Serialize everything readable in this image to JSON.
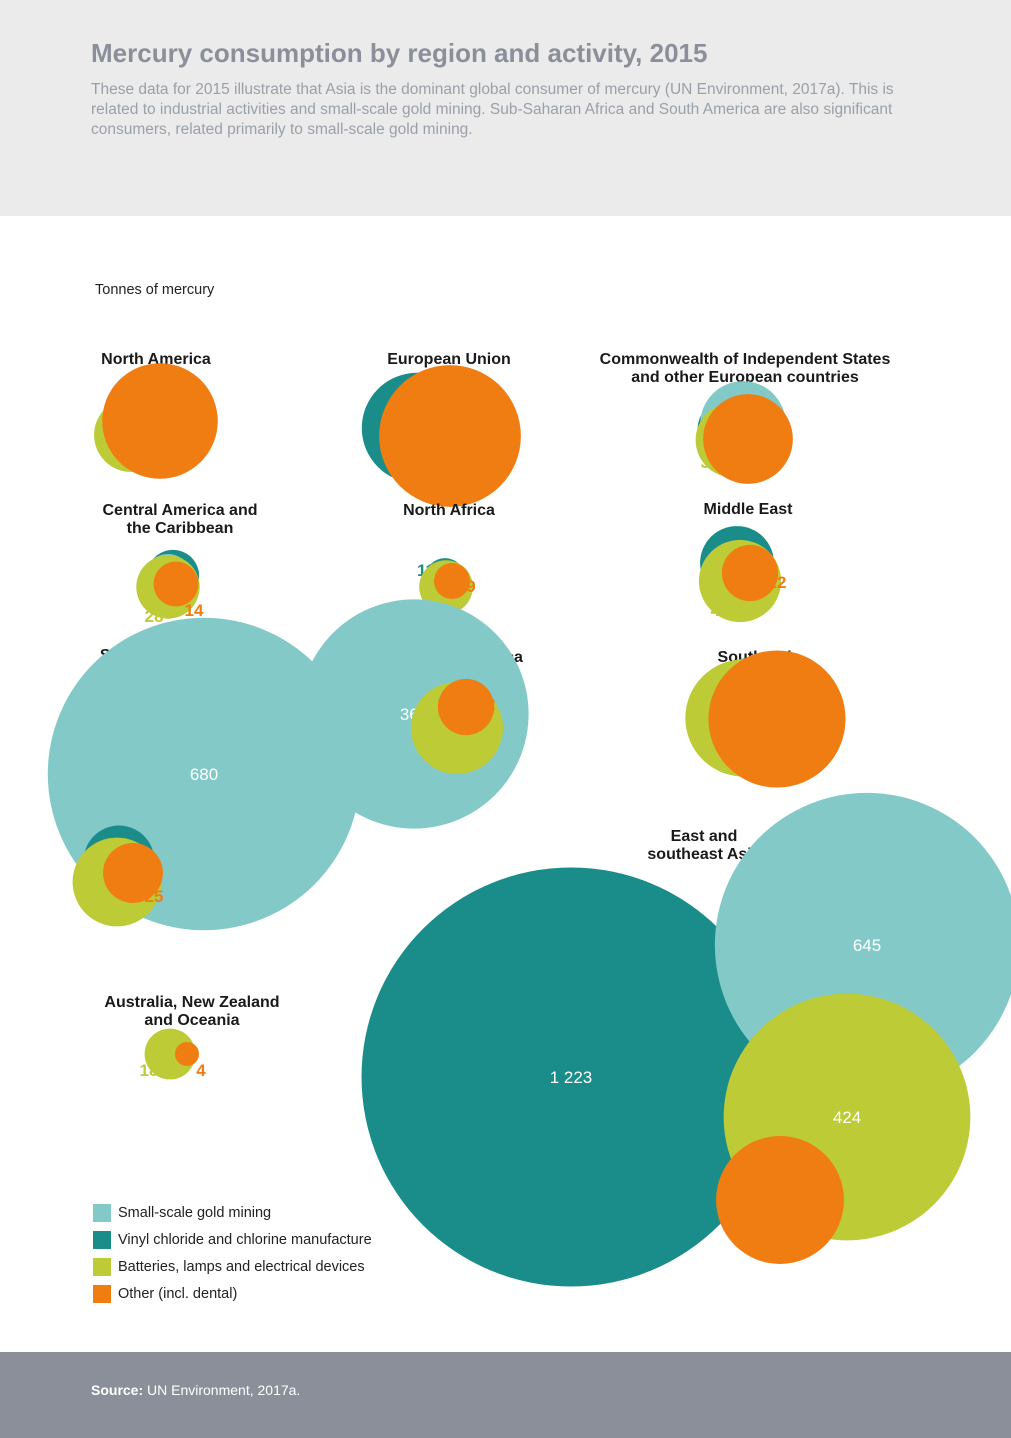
{
  "header": {
    "title": "Mercury consumption by region and activity, 2015",
    "subtitle": "These data for 2015 illustrate that Asia is the dominant global consumer of mercury (UN Environment, 2017a). This is related to industrial activities and small-scale gold mining. Sub-Saharan Africa and South America are also significant consumers, related primarily to small-scale gold mining."
  },
  "unit_label": "Tonnes of mercury",
  "colors": {
    "gold_mining": "#83c9c8",
    "vinyl_chloride": "#1a8c8a",
    "batteries": "#bccb36",
    "other": "#ef7d11",
    "header_bg": "#ebebeb",
    "footer_bg": "#8a8f99"
  },
  "legend": [
    {
      "key": "gold_mining",
      "label": "Small-scale gold mining"
    },
    {
      "key": "vinyl_chloride",
      "label": "Vinyl chloride and chlorine manufacture"
    },
    {
      "key": "batteries",
      "label": "Batteries, lamps and electrical devices"
    },
    {
      "key": "other",
      "label": "Other (incl. dental)"
    }
  ],
  "chart_data": {
    "type": "bubble",
    "unit": "Tonnes of mercury",
    "categories": [
      "Small-scale gold mining",
      "Vinyl chloride and chlorine manufacture",
      "Batteries, lamps and electrical devices",
      "Other (incl. dental)"
    ],
    "regions": [
      {
        "name": "North America",
        "values": [
          {
            "category": "vinyl_chloride",
            "value": 8,
            "label": "8"
          },
          {
            "category": "batteries",
            "value": 38,
            "label": "38"
          },
          {
            "category": "other",
            "value": 93,
            "label": "93"
          }
        ]
      },
      {
        "name": "European Union (28)",
        "values": [
          {
            "category": "vinyl_chloride",
            "value": 85,
            "label": "85"
          },
          {
            "category": "batteries",
            "value": 25,
            "label": "25"
          },
          {
            "category": "other",
            "value": 140,
            "label": "140"
          }
        ]
      },
      {
        "name": "Commonwealth of Independent States and other European countries",
        "values": [
          {
            "category": "vinyl_chloride",
            "value": 24,
            "label": "24"
          },
          {
            "category": "gold_mining",
            "value": 51,
            "label": "51"
          },
          {
            "category": "batteries",
            "value": 39,
            "label": "39"
          },
          {
            "category": "other",
            "value": 56,
            "label": "56"
          }
        ]
      },
      {
        "name": "Central America and the Caribbean",
        "values": [
          {
            "category": "vinyl_chloride",
            "value": 19,
            "label": "19"
          },
          {
            "category": "gold_mining",
            "value": 16,
            "label": "16"
          },
          {
            "category": "batteries",
            "value": 28,
            "label": "28"
          },
          {
            "category": "other",
            "value": 14,
            "label": "14"
          }
        ]
      },
      {
        "name": "North Africa",
        "values": [
          {
            "category": "vinyl_chloride",
            "value": 11,
            "label": "11"
          },
          {
            "category": "batteries",
            "value": 20,
            "label": "20"
          },
          {
            "category": "other",
            "value": 9,
            "label": "9"
          }
        ]
      },
      {
        "name": "Middle East",
        "values": [
          {
            "category": "vinyl_chloride",
            "value": 38,
            "label": "38"
          },
          {
            "category": "batteries",
            "value": 47,
            "label": "47"
          },
          {
            "category": "other",
            "value": 22,
            "label": "22"
          }
        ]
      },
      {
        "name": "South America",
        "values": [
          {
            "category": "gold_mining",
            "value": 680,
            "label": "680"
          },
          {
            "category": "vinyl_chloride",
            "value": 35,
            "label": "35"
          },
          {
            "category": "batteries",
            "value": 55,
            "label": "55"
          },
          {
            "category": "other",
            "value": 25,
            "label": "25"
          }
        ]
      },
      {
        "name": "Sub-Saharan Africa",
        "values": [
          {
            "category": "gold_mining",
            "value": 366,
            "label": "366"
          },
          {
            "category": "vinyl_chloride",
            "value": 1,
            "label": "1"
          },
          {
            "category": "batteries",
            "value": 59,
            "label": "59"
          },
          {
            "category": "other",
            "value": 22,
            "label": "22"
          }
        ]
      },
      {
        "name": "South Asia",
        "values": [
          {
            "category": "vinyl_chloride",
            "value": 32,
            "label": "32"
          },
          {
            "category": "gold_mining",
            "value": 4,
            "label": "4"
          },
          {
            "category": "batteries",
            "value": 96,
            "label": "96"
          },
          {
            "category": "other",
            "value": 131,
            "label": "131"
          }
        ]
      },
      {
        "name": "East and southeast Asia",
        "values": [
          {
            "category": "vinyl_chloride",
            "value": 1223,
            "label": "1 223"
          },
          {
            "category": "gold_mining",
            "value": 645,
            "label": "645"
          },
          {
            "category": "batteries",
            "value": 424,
            "label": "424"
          },
          {
            "category": "other",
            "value": 114,
            "label": "114"
          }
        ]
      },
      {
        "name": "Australia, New Zealand and Oceania",
        "values": [
          {
            "category": "batteries",
            "value": 18,
            "label": "18"
          },
          {
            "category": "other",
            "value": 4,
            "label": "4"
          }
        ]
      }
    ]
  },
  "footer": {
    "source_label": "Source:",
    "source_text": " UN Environment, 2017a."
  }
}
